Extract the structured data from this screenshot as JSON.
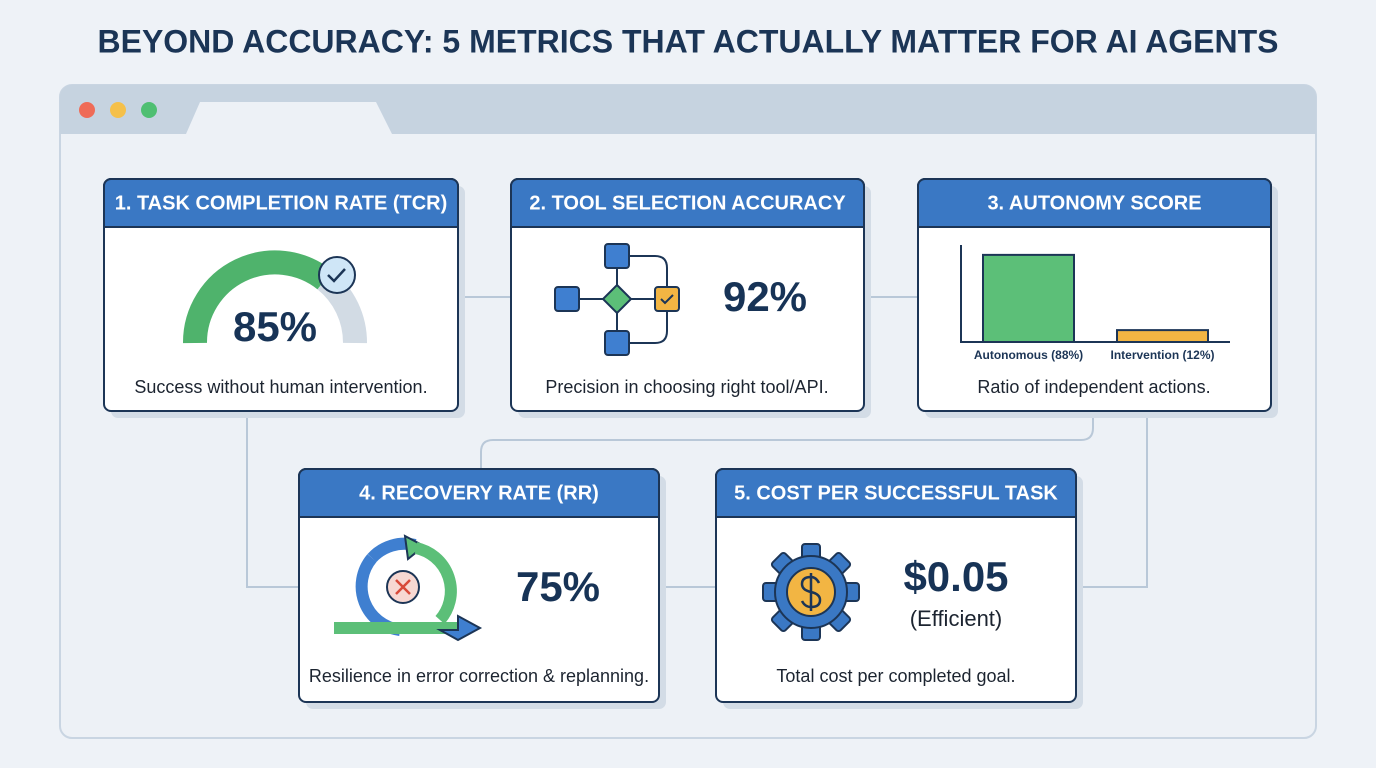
{
  "title": "BEYOND ACCURACY: 5 METRICS THAT ACTUALLY MATTER FOR AI AGENTS",
  "cards": [
    {
      "heading": "1. TASK COMPLETION RATE (TCR)",
      "value": "85%",
      "caption": "Success without human intervention."
    },
    {
      "heading": "2. TOOL SELECTION ACCURACY",
      "value": "92%",
      "caption": "Precision in choosing right tool/API."
    },
    {
      "heading": "3. AUTONOMY SCORE",
      "bars": [
        {
          "label": "Autonomous (88%)",
          "value": 88,
          "color": "#5cbf78"
        },
        {
          "label": "Intervention (12%)",
          "value": 12,
          "color": "#f2b543"
        }
      ],
      "caption": "Ratio of independent actions."
    },
    {
      "heading": "4. RECOVERY RATE (RR)",
      "value": "75%",
      "caption": "Resilience in error correction & replanning."
    },
    {
      "heading": "5. COST PER SUCCESSFUL TASK",
      "value": "$0.05",
      "note": "(Efficient)",
      "caption": "Total cost per completed goal."
    }
  ]
}
